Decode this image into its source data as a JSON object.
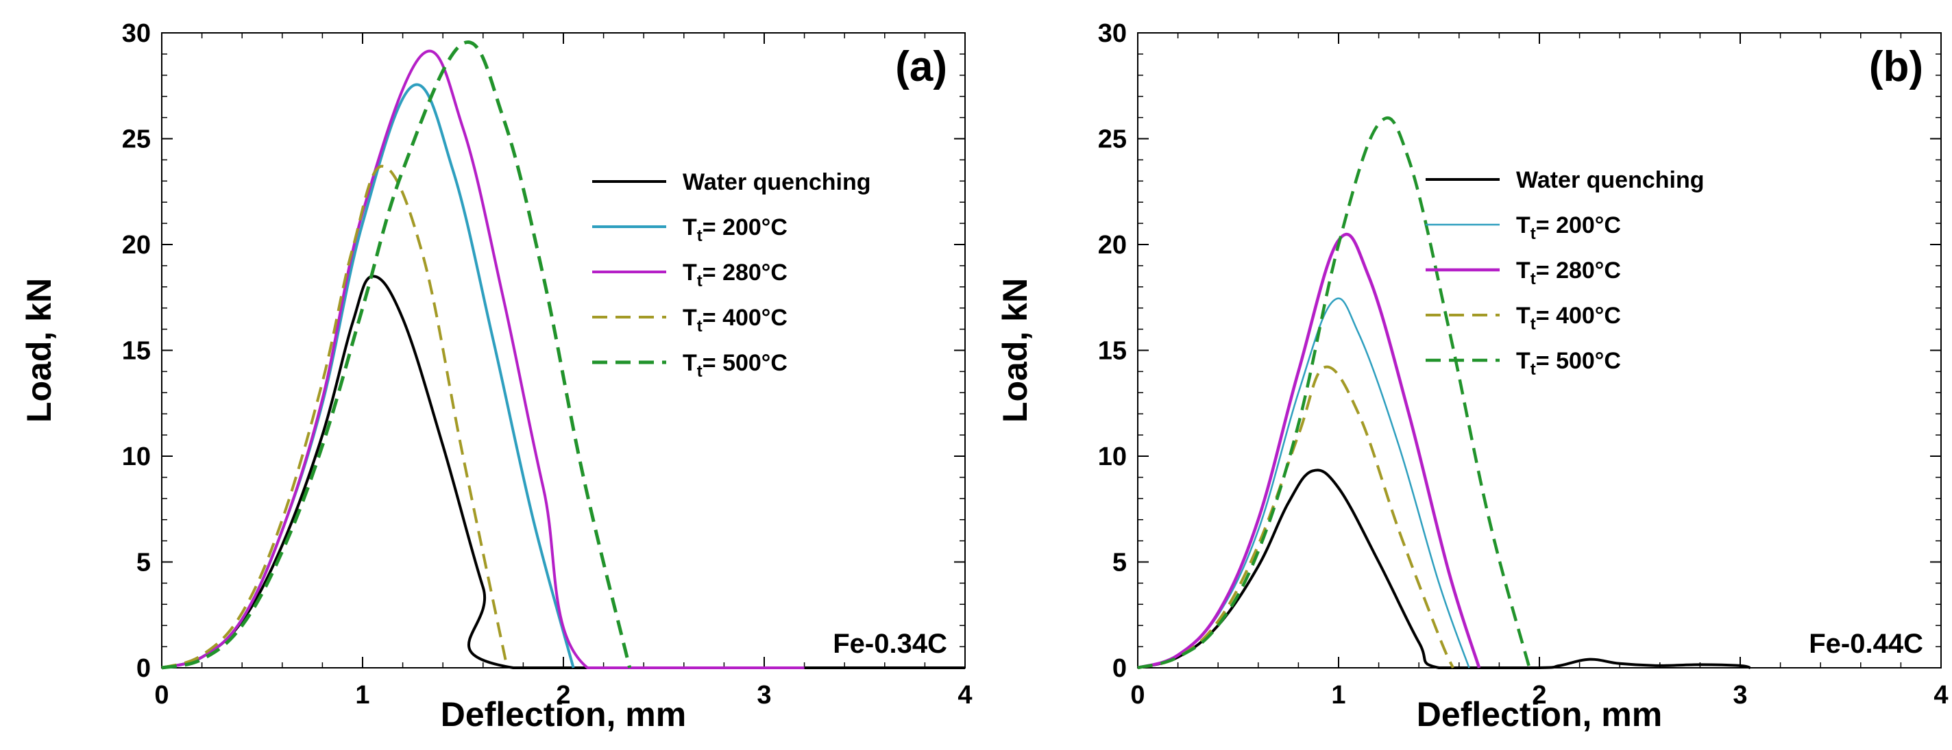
{
  "chart_data": [
    {
      "type": "line",
      "panel_label": "(a)",
      "annotation": "Fe-0.34C",
      "xlabel": "Deflection, mm",
      "ylabel": "Load, kN",
      "xlim": [
        0,
        4
      ],
      "ylim": [
        0,
        30
      ],
      "xticks": [
        "0",
        "1",
        "2",
        "3",
        "4"
      ],
      "yticks": [
        "0",
        "5",
        "10",
        "15",
        "20",
        "25",
        "30"
      ],
      "legend_position": "right",
      "legend": [
        {
          "label": "Water quenching",
          "prefix": "",
          "sub": "",
          "suffix": ""
        },
        {
          "label": "Tt= 200°C",
          "prefix": "T",
          "sub": "t",
          "suffix": "= 200°C"
        },
        {
          "label": "Tt= 280°C",
          "prefix": "T",
          "sub": "t",
          "suffix": "= 280°C"
        },
        {
          "label": "Tt= 400°C",
          "prefix": "T",
          "sub": "t",
          "suffix": "= 400°C"
        },
        {
          "label": "Tt= 500°C",
          "prefix": "T",
          "sub": "t",
          "suffix": "= 500°C"
        }
      ],
      "series": [
        {
          "color": "#000000",
          "dash": "solid",
          "width": 4,
          "peak_x": 1.05,
          "peak_y": 18.5,
          "end_x": 1.75,
          "tail_x": 4.0,
          "points": [
            [
              0,
              0
            ],
            [
              0.2,
              0.5
            ],
            [
              0.4,
              2.2
            ],
            [
              0.6,
              5.8
            ],
            [
              0.8,
              11.0
            ],
            [
              0.95,
              16.3
            ],
            [
              1.05,
              18.5
            ],
            [
              1.2,
              16.5
            ],
            [
              1.4,
              10.5
            ],
            [
              1.6,
              3.8
            ],
            [
              1.75,
              0
            ],
            [
              4.0,
              0
            ]
          ]
        },
        {
          "color": "#2E9FBF",
          "dash": "solid",
          "width": 4,
          "peak_x": 1.25,
          "peak_y": 27.5,
          "end_x": 2.05,
          "tail_x": 2.05,
          "points": [
            [
              0,
              0
            ],
            [
              0.2,
              0.5
            ],
            [
              0.4,
              2.3
            ],
            [
              0.6,
              6.5
            ],
            [
              0.8,
              12.5
            ],
            [
              1.0,
              21.0
            ],
            [
              1.25,
              27.5
            ],
            [
              1.45,
              23.5
            ],
            [
              1.65,
              15.5
            ],
            [
              1.85,
              7.0
            ],
            [
              2.05,
              0
            ]
          ]
        },
        {
          "color": "#B51FC7",
          "dash": "solid",
          "width": 4,
          "peak_x": 1.3,
          "peak_y": 29.0,
          "end_x": 2.12,
          "tail_x": 3.2,
          "points": [
            [
              0,
              0
            ],
            [
              0.2,
              0.5
            ],
            [
              0.4,
              2.3
            ],
            [
              0.6,
              6.5
            ],
            [
              0.8,
              12.7
            ],
            [
              1.0,
              21.5
            ],
            [
              1.3,
              29.0
            ],
            [
              1.5,
              25.5
            ],
            [
              1.7,
              17.5
            ],
            [
              1.9,
              8.5
            ],
            [
              2.12,
              0
            ],
            [
              3.0,
              0
            ],
            [
              3.2,
              0
            ]
          ]
        },
        {
          "color": "#A39A26",
          "dash": "dash",
          "width": 4,
          "peak_x": 1.1,
          "peak_y": 23.7,
          "end_x": 1.72,
          "tail_x": 1.72,
          "points": [
            [
              0,
              0
            ],
            [
              0.2,
              0.6
            ],
            [
              0.4,
              2.6
            ],
            [
              0.6,
              7.0
            ],
            [
              0.8,
              13.5
            ],
            [
              0.95,
              19.8
            ],
            [
              1.1,
              23.7
            ],
            [
              1.3,
              19.5
            ],
            [
              1.5,
              10.0
            ],
            [
              1.72,
              0
            ]
          ]
        },
        {
          "color": "#21932B",
          "dash": "dash",
          "width": 5,
          "peak_x": 1.5,
          "peak_y": 29.5,
          "end_x": 2.33,
          "tail_x": 2.33,
          "points": [
            [
              0,
              0
            ],
            [
              0.2,
              0.4
            ],
            [
              0.4,
              2.0
            ],
            [
              0.6,
              5.5
            ],
            [
              0.8,
              10.5
            ],
            [
              1.0,
              17.0
            ],
            [
              1.2,
              23.5
            ],
            [
              1.5,
              29.5
            ],
            [
              1.7,
              26.0
            ],
            [
              1.9,
              18.5
            ],
            [
              2.1,
              9.0
            ],
            [
              2.33,
              0
            ]
          ]
        }
      ]
    },
    {
      "type": "line",
      "panel_label": "(b)",
      "annotation": "Fe-0.44C",
      "xlabel": "Deflection, mm",
      "ylabel": "Load, kN",
      "xlim": [
        0,
        4
      ],
      "ylim": [
        0,
        30
      ],
      "xticks": [
        "0",
        "1",
        "2",
        "3",
        "4"
      ],
      "yticks": [
        "0",
        "5",
        "10",
        "15",
        "20",
        "25",
        "30"
      ],
      "legend_position": "right",
      "legend": [
        {
          "label": "Water quenching",
          "prefix": "",
          "sub": "",
          "suffix": ""
        },
        {
          "label": "Tt= 200°C",
          "prefix": "T",
          "sub": "t",
          "suffix": "= 200°C"
        },
        {
          "label": "Tt= 280°C",
          "prefix": "T",
          "sub": "t",
          "suffix": "= 280°C"
        },
        {
          "label": "Tt= 400°C",
          "prefix": "T",
          "sub": "t",
          "suffix": "= 400°C"
        },
        {
          "label": "Tt= 500°C",
          "prefix": "T",
          "sub": "t",
          "suffix": "= 500°C"
        }
      ],
      "series": [
        {
          "color": "#000000",
          "dash": "solid",
          "width": 4,
          "points": [
            [
              0,
              0
            ],
            [
              0.2,
              0.5
            ],
            [
              0.4,
              2.0
            ],
            [
              0.6,
              4.8
            ],
            [
              0.75,
              7.8
            ],
            [
              0.87,
              9.3
            ],
            [
              1.0,
              8.5
            ],
            [
              1.2,
              5.0
            ],
            [
              1.4,
              1.2
            ],
            [
              1.5,
              0
            ],
            [
              2.0,
              0
            ],
            [
              2.1,
              0.1
            ],
            [
              2.25,
              0.4
            ],
            [
              2.4,
              0.2
            ],
            [
              2.6,
              0.1
            ],
            [
              2.8,
              0.15
            ],
            [
              3.0,
              0.1
            ],
            [
              3.05,
              0
            ]
          ]
        },
        {
          "color": "#2E9FBF",
          "dash": "solid",
          "width": 2.5,
          "points": [
            [
              0,
              0
            ],
            [
              0.2,
              0.6
            ],
            [
              0.4,
              2.5
            ],
            [
              0.6,
              6.5
            ],
            [
              0.8,
              13.0
            ],
            [
              0.97,
              17.3
            ],
            [
              1.1,
              15.8
            ],
            [
              1.3,
              10.5
            ],
            [
              1.5,
              4.0
            ],
            [
              1.65,
              0
            ]
          ]
        },
        {
          "color": "#B51FC7",
          "dash": "solid",
          "width": 4.5,
          "points": [
            [
              0,
              0
            ],
            [
              0.2,
              0.6
            ],
            [
              0.4,
              2.6
            ],
            [
              0.6,
              7.0
            ],
            [
              0.8,
              14.0
            ],
            [
              1.0,
              20.2
            ],
            [
              1.15,
              18.5
            ],
            [
              1.35,
              12.0
            ],
            [
              1.55,
              4.5
            ],
            [
              1.7,
              0
            ]
          ]
        },
        {
          "color": "#A39A26",
          "dash": "dash",
          "width": 4,
          "points": [
            [
              0,
              0
            ],
            [
              0.2,
              0.5
            ],
            [
              0.4,
              2.2
            ],
            [
              0.6,
              5.8
            ],
            [
              0.8,
              11.0
            ],
            [
              0.93,
              14.2
            ],
            [
              1.1,
              12.0
            ],
            [
              1.3,
              6.5
            ],
            [
              1.5,
              1.5
            ],
            [
              1.57,
              0
            ]
          ]
        },
        {
          "color": "#21932B",
          "dash": "dash",
          "width": 4.5,
          "points": [
            [
              0,
              0
            ],
            [
              0.2,
              0.5
            ],
            [
              0.4,
              2.0
            ],
            [
              0.6,
              5.5
            ],
            [
              0.8,
              11.5
            ],
            [
              1.0,
              20.0
            ],
            [
              1.2,
              25.7
            ],
            [
              1.35,
              24.0
            ],
            [
              1.55,
              16.0
            ],
            [
              1.75,
              7.0
            ],
            [
              1.95,
              0
            ]
          ]
        }
      ]
    }
  ]
}
